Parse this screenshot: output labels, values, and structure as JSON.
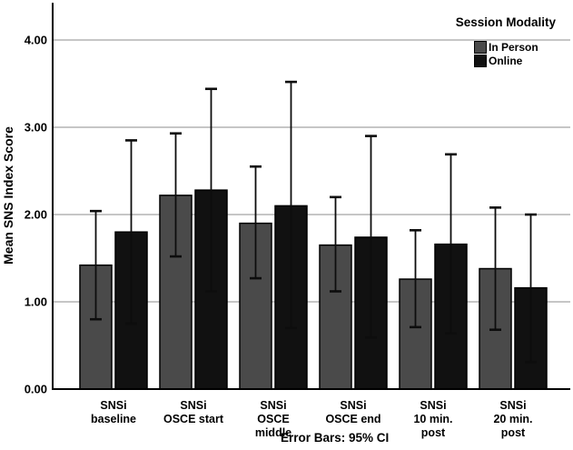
{
  "figure": {
    "footnote": "Error Bars: 95% CI"
  },
  "chart_data": {
    "type": "bar",
    "title": "",
    "xlabel": "",
    "ylabel": "Mean SNS Index Score",
    "ylim": [
      0,
      4.42
    ],
    "yticks": [
      0,
      1,
      2,
      3,
      4
    ],
    "ytick_labels": [
      "0.00",
      "1.00",
      "2.00",
      "3.00",
      "4.00"
    ],
    "grid": "horizontal",
    "categories": [
      "SNSi baseline",
      "SNSi OSCE start",
      "SNSi OSCE middle",
      "SNSi OSCE end",
      "SNSi 10 min. post",
      "SNSi 20 min. post"
    ],
    "category_label_lines": [
      [
        "SNSi",
        "baseline"
      ],
      [
        "SNSi",
        "OSCE start"
      ],
      [
        "SNSi",
        "OSCE",
        "middle"
      ],
      [
        "SNSi",
        "OSCE end"
      ],
      [
        "SNSi",
        "10 min.",
        "post"
      ],
      [
        "SNSi",
        "20 min.",
        "post"
      ]
    ],
    "legend": {
      "title": "Session Modality",
      "position": "top-right",
      "entries": [
        "In Person",
        "Online"
      ]
    },
    "error_note": "Error Bars: 95% CI",
    "error_bar_type": "95% CI",
    "colors": {
      "in_person": "#4a4a4a",
      "online": "#111111",
      "gridline": "#b3b3b3",
      "axis": "#000000",
      "error_bar": "#0d0d0d"
    },
    "series": [
      {
        "name": "In Person",
        "color": "#4a4a4a",
        "means": [
          1.42,
          2.22,
          1.9,
          1.65,
          1.26,
          1.38
        ],
        "ci_low": [
          0.8,
          1.52,
          1.27,
          1.12,
          0.71,
          0.68
        ],
        "ci_high": [
          2.04,
          2.93,
          2.55,
          2.2,
          1.82,
          2.08
        ]
      },
      {
        "name": "Online",
        "color": "#111111",
        "means": [
          1.8,
          2.28,
          2.1,
          1.74,
          1.66,
          1.16
        ],
        "ci_low": [
          0.75,
          1.12,
          0.7,
          0.59,
          0.64,
          0.31
        ],
        "ci_high": [
          2.85,
          3.44,
          3.52,
          2.9,
          2.69,
          2.0
        ]
      }
    ]
  }
}
